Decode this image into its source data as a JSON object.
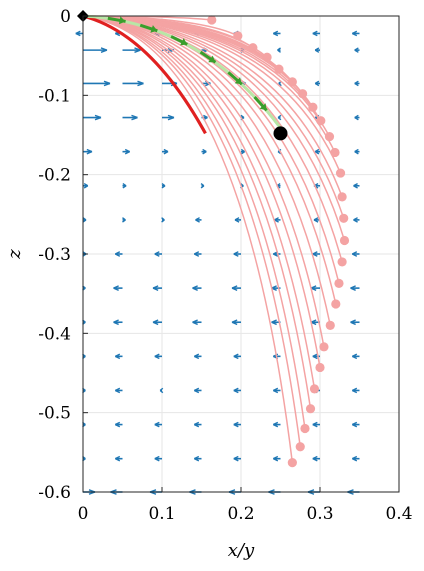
{
  "chart_data": {
    "type": "line",
    "xlabel": "x/y",
    "ylabel": "z",
    "xlim": [
      0,
      0.4
    ],
    "ylim": [
      -0.6,
      0
    ],
    "xticks": [
      "0",
      "0.1",
      "0.2",
      "0.3",
      "0.4"
    ],
    "yticks": [
      "0",
      "-0.1",
      "-0.2",
      "-0.3",
      "-0.4",
      "-0.5",
      "-0.6"
    ],
    "grid": true,
    "colors": {
      "family": "#f4a3a3",
      "endpoint": "#f4a3a3",
      "red_path": "#e02020",
      "green_path": "#b9e6a6",
      "green_arrows": "#3a9e2c",
      "quiver": "#1f77b4",
      "marker": "#000000"
    },
    "family_endpoints": [
      [
        0.163,
        -0.005
      ],
      [
        0.196,
        -0.025
      ],
      [
        0.215,
        -0.04
      ],
      [
        0.233,
        -0.052
      ],
      [
        0.248,
        -0.067
      ],
      [
        0.265,
        -0.083
      ],
      [
        0.278,
        -0.098
      ],
      [
        0.291,
        -0.115
      ],
      [
        0.301,
        -0.132
      ],
      [
        0.312,
        -0.152
      ],
      [
        0.319,
        -0.172
      ],
      [
        0.326,
        -0.198
      ],
      [
        0.328,
        -0.228
      ],
      [
        0.33,
        -0.255
      ],
      [
        0.331,
        -0.283
      ],
      [
        0.328,
        -0.31
      ],
      [
        0.324,
        -0.337
      ],
      [
        0.32,
        -0.363
      ],
      [
        0.313,
        -0.39
      ],
      [
        0.305,
        -0.417
      ],
      [
        0.3,
        -0.443
      ],
      [
        0.293,
        -0.47
      ],
      [
        0.288,
        -0.495
      ],
      [
        0.281,
        -0.52
      ],
      [
        0.275,
        -0.543
      ],
      [
        0.265,
        -0.563
      ]
    ],
    "red_path": {
      "end": [
        0.155,
        -0.148
      ]
    },
    "green_path": {
      "end": [
        0.255,
        -0.148
      ]
    },
    "marker_start": [
      0,
      0
    ],
    "marker_end": [
      0.25,
      -0.148
    ],
    "quiver_rows": [
      {
        "z": -0.022,
        "u": [
          -0.012,
          -0.012,
          -0.012,
          -0.012,
          -0.012,
          -0.012,
          -0.012,
          -0.012
        ]
      },
      {
        "z": -0.043,
        "u": [
          0.04,
          0.03,
          0.02,
          0.01,
          0.005,
          -0.005,
          -0.008,
          -0.008
        ]
      },
      {
        "z": -0.085,
        "u": [
          0.045,
          0.035,
          0.025,
          0.015,
          0.008,
          -0.003,
          -0.008,
          -0.008
        ]
      },
      {
        "z": -0.128,
        "u": [
          0.03,
          0.025,
          0.02,
          0.01,
          0.005,
          -0.004,
          -0.008,
          -0.008
        ]
      },
      {
        "z": -0.171,
        "u": [
          0.015,
          0.012,
          0.01,
          0.008,
          0.006,
          -0.004,
          -0.008,
          -0.008
        ]
      },
      {
        "z": -0.214,
        "u": [
          0.008,
          0.006,
          0.005,
          0.004,
          0.004,
          -0.006,
          -0.01,
          -0.01
        ]
      },
      {
        "z": -0.257,
        "u": [
          0.005,
          0.005,
          0.004,
          -0.01,
          -0.01,
          -0.01,
          -0.01,
          -0.01
        ]
      },
      {
        "z": -0.3,
        "u": [
          0.005,
          -0.012,
          -0.012,
          -0.012,
          -0.012,
          -0.012,
          -0.012,
          -0.012
        ]
      },
      {
        "z": -0.343,
        "u": [
          0.004,
          -0.015,
          -0.015,
          -0.015,
          -0.015,
          -0.015,
          -0.015,
          -0.015
        ]
      },
      {
        "z": -0.386,
        "u": [
          0.004,
          -0.015,
          -0.015,
          -0.015,
          -0.015,
          -0.015,
          -0.015,
          -0.015
        ]
      },
      {
        "z": -0.429,
        "u": [
          0.004,
          -0.012,
          -0.012,
          -0.012,
          -0.012,
          -0.012,
          -0.012,
          -0.012
        ]
      },
      {
        "z": -0.472,
        "u": [
          0.004,
          -0.012,
          -0.003,
          -0.012,
          -0.012,
          -0.012,
          -0.012,
          -0.012
        ]
      },
      {
        "z": -0.515,
        "u": [
          0.004,
          -0.012,
          -0.012,
          -0.012,
          -0.012,
          -0.012,
          -0.012,
          -0.012
        ]
      },
      {
        "z": -0.558,
        "u": [
          0.004,
          -0.012,
          -0.012,
          -0.012,
          -0.012,
          -0.012,
          -0.012,
          -0.012
        ]
      },
      {
        "z": -0.6,
        "u": [
          0.02,
          -0.02,
          -0.02,
          -0.02,
          -0.02,
          -0.02,
          -0.02,
          -0.02
        ]
      }
    ],
    "quiver_x": [
      0,
      0.05,
      0.1,
      0.15,
      0.2,
      0.25,
      0.3,
      0.35
    ]
  }
}
